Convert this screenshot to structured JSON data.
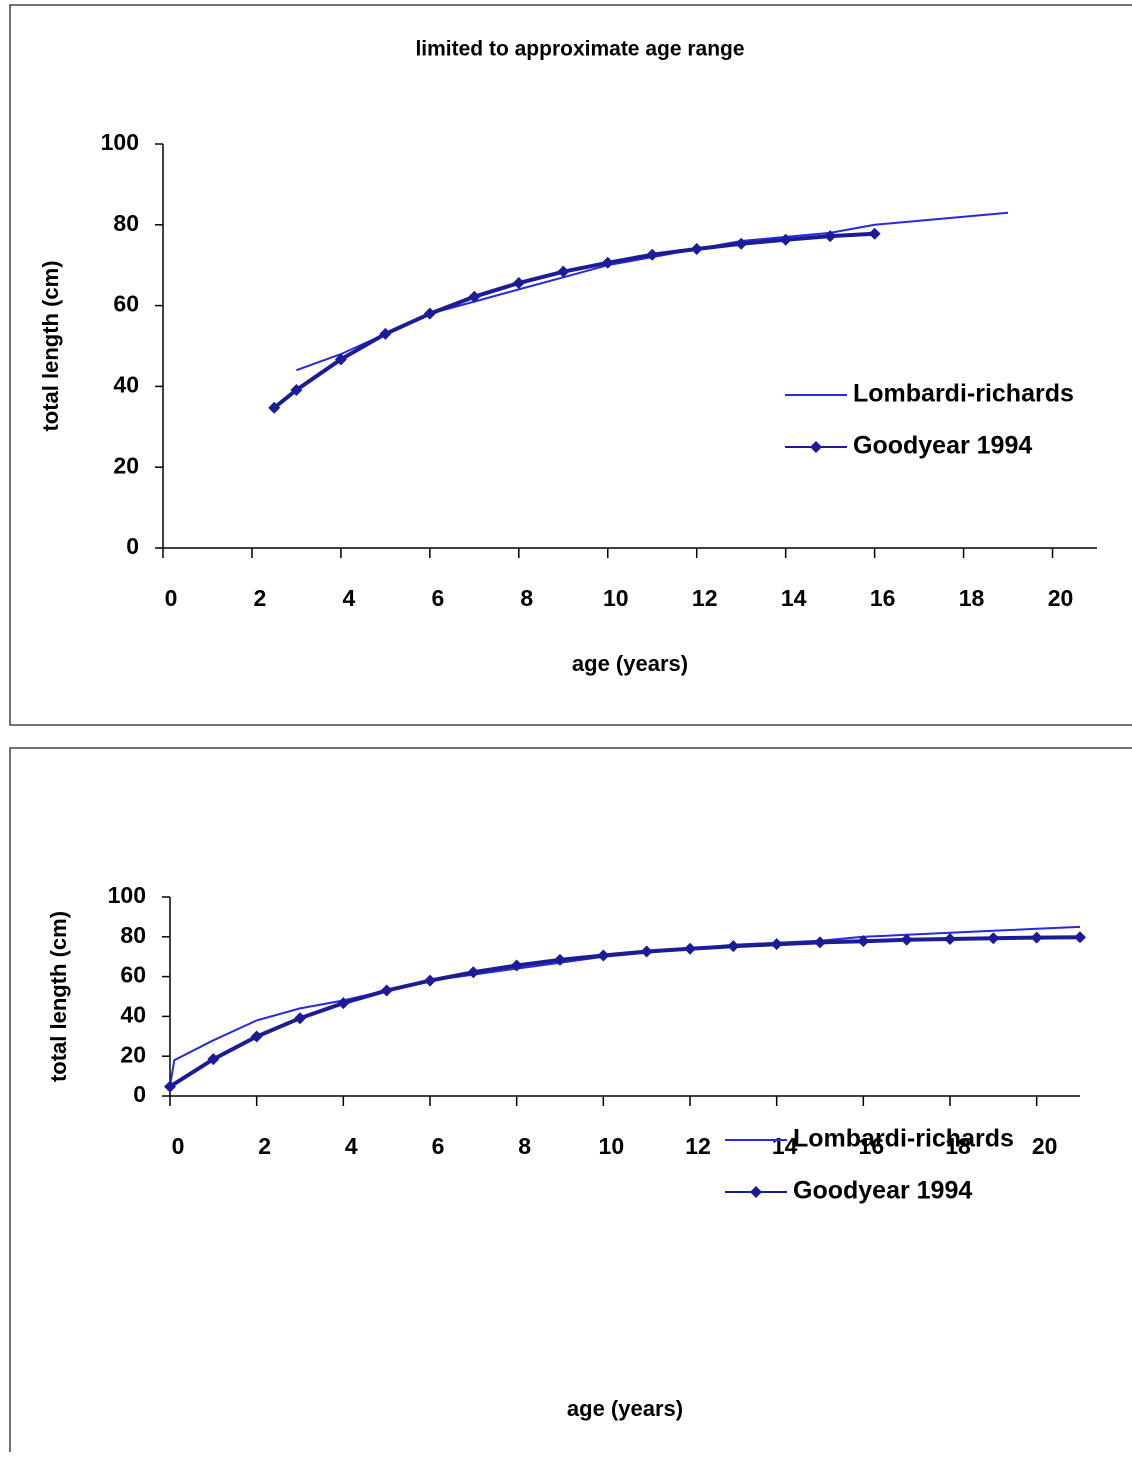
{
  "chart_data": [
    {
      "type": "line",
      "title": "limited to approximate age range",
      "x_label": "age (years)",
      "y_label": "total length (cm)",
      "xlim": [
        0,
        21
      ],
      "xticks": [
        0,
        2,
        4,
        6,
        8,
        10,
        12,
        14,
        16,
        18,
        20
      ],
      "ylim": [
        0,
        100
      ],
      "yticks": [
        0,
        20,
        40,
        60,
        80,
        100
      ],
      "legend": "right",
      "series": [
        {
          "name": "Lombardi-richards",
          "color": "#2828e6",
          "marker": false,
          "x": [
            3,
            4,
            5,
            6,
            7,
            8,
            9,
            10,
            11,
            12,
            13,
            14,
            15,
            16,
            17,
            18,
            19
          ],
          "values": [
            44,
            48,
            53,
            58,
            61,
            64,
            67,
            70,
            72,
            74,
            76,
            77,
            78,
            80,
            81,
            82,
            83
          ]
        },
        {
          "name": "Goodyear 1994",
          "color": "#1c1c96",
          "marker": true,
          "x": [
            2.5,
            3,
            4,
            5,
            6,
            7,
            8,
            9,
            10,
            11,
            12,
            13,
            14,
            15,
            16
          ],
          "values": [
            34.7,
            39.1,
            46.7,
            53.0,
            58.0,
            62.2,
            65.6,
            68.4,
            70.6,
            72.6,
            74.0,
            75.3,
            76.3,
            77.2,
            77.8
          ]
        }
      ]
    },
    {
      "type": "line",
      "x_label": "age (years)",
      "y_label": "total length (cm)",
      "xlim": [
        0,
        21
      ],
      "xticks": [
        0,
        2,
        4,
        6,
        8,
        10,
        12,
        14,
        16,
        18,
        20
      ],
      "ylim": [
        0,
        100
      ],
      "yticks": [
        0,
        20,
        40,
        60,
        80,
        100
      ],
      "legend": "right",
      "series": [
        {
          "name": "Lombardi-richards",
          "color": "#2828e6",
          "marker": false,
          "x": [
            0,
            0.1,
            1,
            2,
            3,
            4,
            5,
            6,
            7,
            8,
            9,
            10,
            11,
            12,
            13,
            14,
            15,
            16,
            17,
            18,
            19,
            20,
            21
          ],
          "values": [
            5,
            18,
            28,
            38,
            44,
            48,
            53,
            58,
            61,
            64,
            67,
            70,
            72,
            74,
            76,
            77,
            78,
            80,
            81,
            82,
            83,
            84,
            85
          ]
        },
        {
          "name": "Goodyear 1994",
          "color": "#1c1c96",
          "marker": true,
          "x": [
            0,
            1,
            2,
            3,
            4,
            5,
            6,
            7,
            8,
            9,
            10,
            11,
            12,
            13,
            14,
            15,
            16,
            17,
            18,
            19,
            20,
            21
          ],
          "values": [
            4.7,
            18.5,
            29.9,
            39.1,
            46.7,
            53.0,
            58.0,
            62.2,
            65.6,
            68.4,
            70.6,
            72.6,
            74.0,
            75.3,
            76.3,
            77.2,
            77.8,
            78.5,
            78.9,
            79.3,
            79.6,
            79.8
          ]
        }
      ]
    }
  ]
}
